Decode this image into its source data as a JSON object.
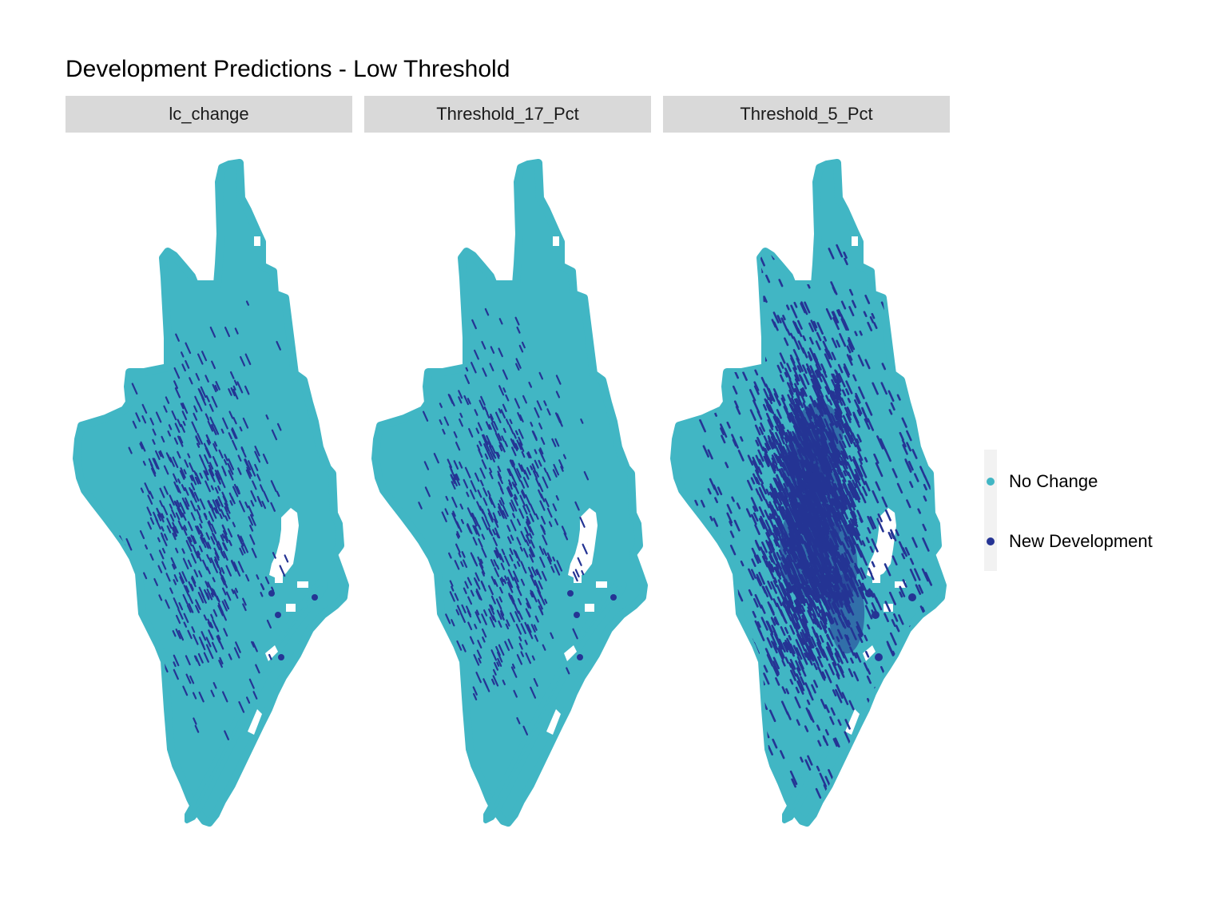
{
  "title": "Development Predictions - Low Threshold",
  "colors": {
    "no_change": "#41b6c4",
    "new_development": "#253494",
    "strip_bg": "#d9d9d9",
    "legend_bg": "#f2f2f2"
  },
  "panels": [
    {
      "label": "lc_change",
      "development_level": "low"
    },
    {
      "label": "Threshold_17_Pct",
      "development_level": "low"
    },
    {
      "label": "Threshold_5_Pct",
      "development_level": "high"
    }
  ],
  "legend": {
    "items": [
      {
        "label": "No Change",
        "color": "#41b6c4"
      },
      {
        "label": "New Development",
        "color": "#253494"
      }
    ]
  }
}
